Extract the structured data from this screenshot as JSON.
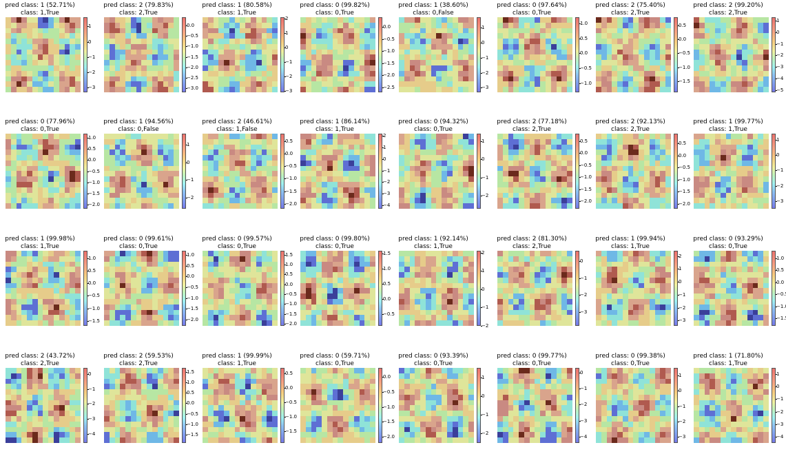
{
  "chart_data": [
    {
      "type": "heatmap",
      "pred": "pred class: 1 (52.71%)",
      "cls": "class: 1,True",
      "ticks": [
        "1",
        "0",
        "−1",
        "−2",
        "−3"
      ],
      "vmin": -3.3,
      "vmax": 1.6
    },
    {
      "type": "heatmap",
      "pred": "pred class: 2 (79.83%)",
      "cls": "class: 2,True",
      "ticks": [
        "0.0",
        "−0.5",
        "−1.0",
        "−1.5",
        "−2.0",
        "−2.5",
        "−3.0"
      ],
      "vmin": -3.2,
      "vmax": 0.4
    },
    {
      "type": "heatmap",
      "pred": "pred class: 1 (80.58%)",
      "cls": "class: 1,True",
      "ticks": [
        "2",
        "1",
        "0",
        "−1",
        "−2",
        "−3"
      ],
      "vmin": -3.1,
      "vmax": 2.1
    },
    {
      "type": "heatmap",
      "pred": "pred class: 0 (99.82%)",
      "cls": "class: 0,True",
      "ticks": [
        "0.0",
        "−0.5",
        "−1.0",
        "−1.5",
        "−2.0",
        "−2.5"
      ],
      "vmin": -2.7,
      "vmax": 0.4
    },
    {
      "type": "heatmap",
      "pred": "pred class: 1 (38.60%)",
      "cls": "class: 0,False",
      "ticks": [
        "1",
        "0",
        "−1",
        "−2",
        "−3"
      ],
      "vmin": -3.3,
      "vmax": 1.7
    },
    {
      "type": "heatmap",
      "pred": "pred class: 0 (97.64%)",
      "cls": "class: 0,True",
      "ticks": [
        "1.0",
        "0.5",
        "0.0",
        "−0.5",
        "−1.0"
      ],
      "vmin": -1.3,
      "vmax": 1.2
    },
    {
      "type": "heatmap",
      "pred": "pred class: 2 (75.40%)",
      "cls": "class: 2,True",
      "ticks": [
        "0.5",
        "0.0",
        "−0.5",
        "−1.0",
        "−1.5"
      ],
      "vmin": -1.9,
      "vmax": 0.8
    },
    {
      "type": "heatmap",
      "pred": "pred class: 2 (99.20%)",
      "cls": "class: 2,True",
      "ticks": [
        "1",
        "0",
        "−1",
        "−2",
        "−3",
        "−4",
        "−5"
      ],
      "vmin": -5.2,
      "vmax": 1.3
    },
    {
      "type": "heatmap",
      "pred": "pred class: 0 (77.96%)",
      "cls": "class: 0,True",
      "ticks": [
        "1.0",
        "0.5",
        "0.0",
        "−0.5",
        "−1.0",
        "−1.5",
        "−2.0"
      ],
      "vmin": -2.2,
      "vmax": 1.2
    },
    {
      "type": "heatmap",
      "pred": "pred class: 1 (94.56%)",
      "cls": "class: 0,False",
      "ticks": [
        "1",
        "0",
        "−1",
        "−2"
      ],
      "vmin": -2.6,
      "vmax": 1.6
    },
    {
      "type": "heatmap",
      "pred": "pred class: 2 (46.61%)",
      "cls": "class: 1,False",
      "ticks": [
        "0.5",
        "0.0",
        "−0.5",
        "−1.0",
        "−1.5",
        "−2.0"
      ],
      "vmin": -2.2,
      "vmax": 0.8
    },
    {
      "type": "heatmap",
      "pred": "pred class: 1 (86.14%)",
      "cls": "class: 1,True",
      "ticks": [
        "2",
        "1",
        "0",
        "−1",
        "−2",
        "−3",
        "−4"
      ],
      "vmin": -4.3,
      "vmax": 2.2
    },
    {
      "type": "heatmap",
      "pred": "pred class: 0 (94.32%)",
      "cls": "class: 0,True",
      "ticks": [
        "1",
        "0",
        "−1",
        "−2"
      ],
      "vmin": -2.7,
      "vmax": 1.4
    },
    {
      "type": "heatmap",
      "pred": "pred class: 2 (77.18%)",
      "cls": "class: 2,True",
      "ticks": [
        "0.5",
        "0.0",
        "−0.5",
        "−1.0",
        "−1.5",
        "−2.0"
      ],
      "vmin": -2.3,
      "vmax": 0.8
    },
    {
      "type": "heatmap",
      "pred": "pred class: 2 (92.13%)",
      "cls": "class: 2,True",
      "ticks": [
        "0.5",
        "0.0",
        "−0.5",
        "−1.0",
        "−1.5",
        "−2.0"
      ],
      "vmin": -2.2,
      "vmax": 0.9
    },
    {
      "type": "heatmap",
      "pred": "pred class: 1 (99.77%)",
      "cls": "class: 1,True",
      "ticks": [
        "1",
        "0",
        "−1",
        "−2",
        "−3"
      ],
      "vmin": -3.5,
      "vmax": 1.4
    },
    {
      "type": "heatmap",
      "pred": "pred class: 1 (99.98%)",
      "cls": "class: 1,True",
      "ticks": [
        "1.0",
        "0.5",
        "0.0",
        "−0.5",
        "−1.0",
        "−1.5"
      ],
      "vmin": -1.7,
      "vmax": 1.3
    },
    {
      "type": "heatmap",
      "pred": "pred class: 0 (99.61%)",
      "cls": "class: 0,True",
      "ticks": [
        "1.0",
        "0.5",
        "0.0",
        "−0.5",
        "−1.0",
        "−1.5",
        "−2.0"
      ],
      "vmin": -2.3,
      "vmax": 1.2
    },
    {
      "type": "heatmap",
      "pred": "pred class: 0 (99.57%)",
      "cls": "class: 0,True",
      "ticks": [
        "1.5",
        "1.0",
        "0.5",
        "0.0",
        "−0.5",
        "−1.0",
        "−1.5",
        "−2.0"
      ],
      "vmin": -2.1,
      "vmax": 1.7
    },
    {
      "type": "heatmap",
      "pred": "pred class: 0 (99.80%)",
      "cls": "class: 0,True",
      "ticks": [
        "1.5",
        "1.0",
        "0.5",
        "0.0",
        "−0.5"
      ],
      "vmin": -0.9,
      "vmax": 1.6
    },
    {
      "type": "heatmap",
      "pred": "pred class: 1 (92.14%)",
      "cls": "class: 1,True",
      "ticks": [
        "2",
        "1",
        "0",
        "−1",
        "−2"
      ],
      "vmin": -2.0,
      "vmax": 2.1
    },
    {
      "type": "heatmap",
      "pred": "pred class: 2 (81.30%)",
      "cls": "class: 2,True",
      "ticks": [
        "0",
        "−1",
        "−2",
        "−3"
      ],
      "vmin": -3.8,
      "vmax": 0.6
    },
    {
      "type": "heatmap",
      "pred": "pred class: 1 (99.94%)",
      "cls": "class: 1,True",
      "ticks": [
        "2",
        "1",
        "0",
        "−1",
        "−2",
        "−3"
      ],
      "vmin": -3.4,
      "vmax": 2.4
    },
    {
      "type": "heatmap",
      "pred": "pred class: 0 (93.29%)",
      "cls": "class: 0,True",
      "ticks": [
        "1.0",
        "0.5",
        "0.0",
        "−0.5",
        "−1.0",
        "−1.5"
      ],
      "vmin": -1.8,
      "vmax": 1.3
    },
    {
      "type": "heatmap",
      "pred": "pred class: 2 (43.72%)",
      "cls": "class: 2,True",
      "ticks": [
        "0",
        "−1",
        "−2",
        "−3",
        "−4"
      ],
      "vmin": -4.6,
      "vmax": 0.4
    },
    {
      "type": "heatmap",
      "pred": "pred class: 2 (59.53%)",
      "cls": "class: 2,True",
      "ticks": [
        "1.5",
        "1.0",
        "0.5",
        "0.0",
        "−0.5",
        "−1.0",
        "−1.5"
      ],
      "vmin": -1.9,
      "vmax": 1.7
    },
    {
      "type": "heatmap",
      "pred": "pred class: 1 (99.99%)",
      "cls": "class: 1,True",
      "ticks": [
        "0.5",
        "0.0",
        "−0.5",
        "−1.0",
        "−1.5"
      ],
      "vmin": -1.9,
      "vmax": 0.7
    },
    {
      "type": "heatmap",
      "pred": "pred class: 0 (59.71%)",
      "cls": "class: 0,True",
      "ticks": [
        "0.0",
        "−0.5",
        "−1.0",
        "−1.5",
        "−2.0"
      ],
      "vmin": -2.2,
      "vmax": 0.3
    },
    {
      "type": "heatmap",
      "pred": "pred class: 0 (93.39%)",
      "cls": "class: 0,True",
      "ticks": [
        "1",
        "0",
        "−1",
        "−2"
      ],
      "vmin": -2.5,
      "vmax": 1.5
    },
    {
      "type": "heatmap",
      "pred": "pred class: 0 (99.77%)",
      "cls": "class: 0,True",
      "ticks": [
        "0",
        "−1",
        "−2",
        "−3",
        "−4"
      ],
      "vmin": -4.4,
      "vmax": 0.3
    },
    {
      "type": "heatmap",
      "pred": "pred class: 0 (99.38%)",
      "cls": "class: 0,True",
      "ticks": [
        "1",
        "0",
        "−1",
        "−2",
        "−3"
      ],
      "vmin": -3.4,
      "vmax": 1.5
    },
    {
      "type": "heatmap",
      "pred": "pred class: 1 (71.80%)",
      "cls": "class: 1,True",
      "ticks": [
        "1",
        "0",
        "−1",
        "−2",
        "−3",
        "−4"
      ],
      "vmin": -4.5,
      "vmax": 1.5
    }
  ]
}
